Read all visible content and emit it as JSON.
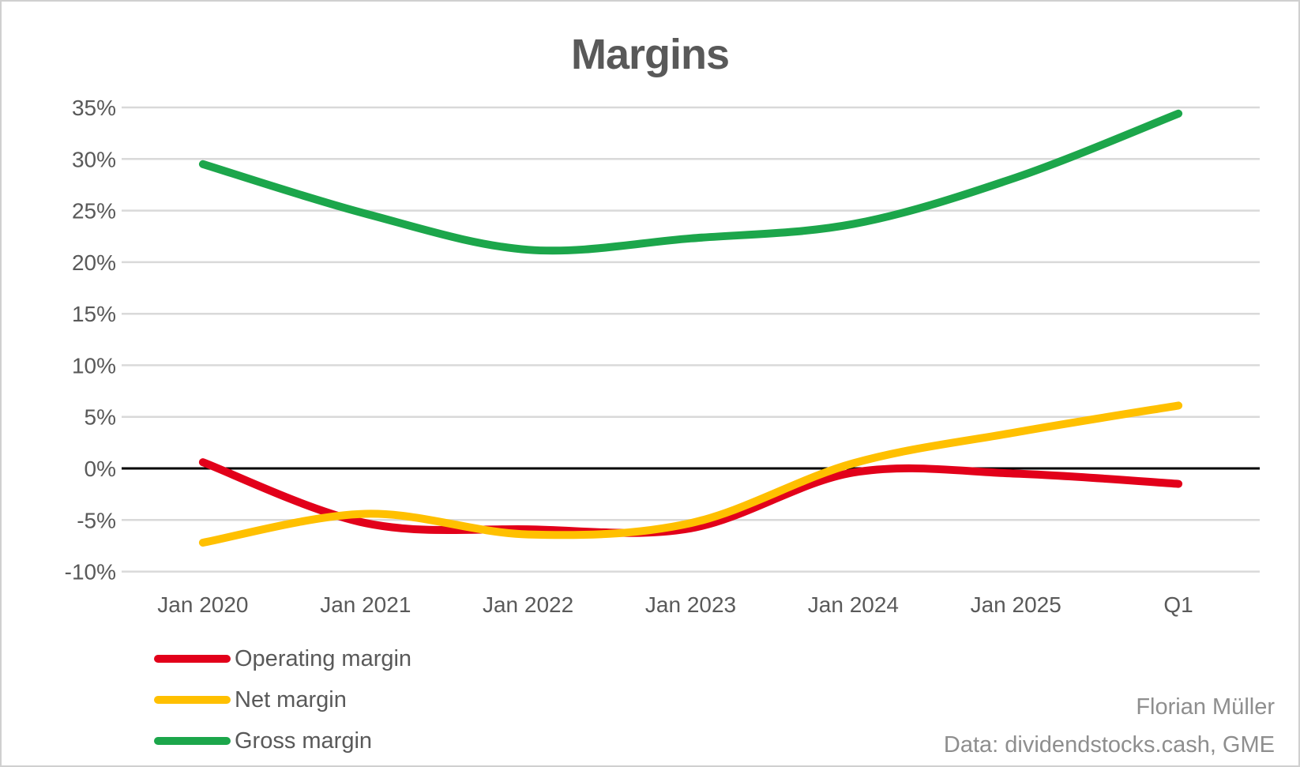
{
  "title": "Margins",
  "attribution": {
    "author": "Florian Müller",
    "source": "Data: dividendstocks.cash, GME"
  },
  "colors": {
    "grid": "#d9d9d9",
    "zero_line": "#000000",
    "axis_text": "#595959",
    "title_text": "#595959",
    "attribution_text": "#8e8e8e",
    "background": "#ffffff",
    "operating_margin": "#e2001a",
    "net_margin": "#ffc000",
    "gross_margin": "#1ca64b"
  },
  "chart_data": {
    "type": "line",
    "smoothed": true,
    "title": "Margins",
    "categories": [
      "Jan 2020",
      "Jan 2021",
      "Jan 2022",
      "Jan 2023",
      "Jan 2024",
      "Jan 2025",
      "Q1"
    ],
    "series": [
      {
        "name": "Operating margin",
        "color": "#e2001a",
        "values": [
          0.6,
          -5.3,
          -5.9,
          -5.8,
          -0.4,
          -0.5,
          -1.5
        ]
      },
      {
        "name": "Net margin",
        "color": "#ffc000",
        "values": [
          -7.2,
          -4.4,
          -6.4,
          -5.3,
          0.5,
          3.5,
          6.1
        ]
      },
      {
        "name": "Gross margin",
        "color": "#1ca64b",
        "values": [
          29.5,
          24.7,
          21.2,
          22.3,
          23.7,
          28.2,
          34.4
        ]
      }
    ],
    "ylim": [
      -10,
      35
    ],
    "y_tick_step": 5,
    "y_tick_values": [
      35,
      30,
      25,
      20,
      15,
      10,
      5,
      0,
      -5,
      -10
    ],
    "y_tick_labels": [
      "35%",
      "30%",
      "25%",
      "20%",
      "15%",
      "10%",
      "5%",
      "0%",
      "-5%",
      "-10%"
    ],
    "grid": true,
    "zero_line": true,
    "legend_position": "bottom-left",
    "units": "%"
  }
}
